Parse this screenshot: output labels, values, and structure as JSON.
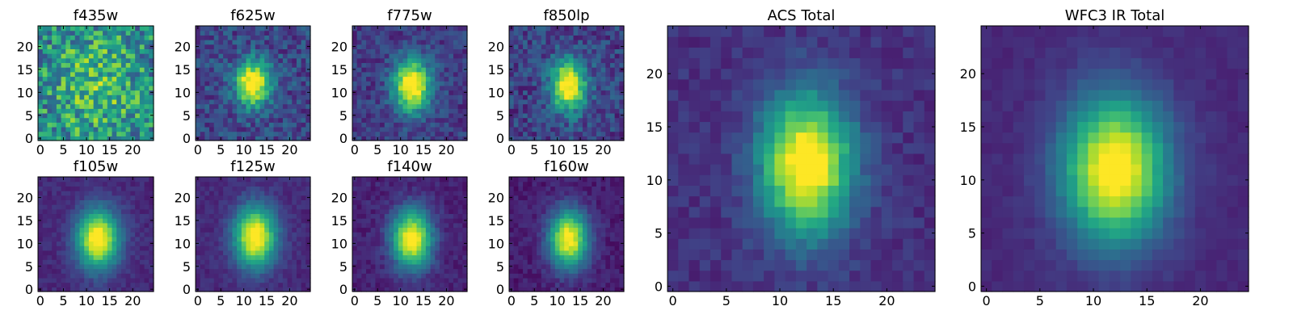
{
  "chart_data": [
    {
      "type": "heatmap",
      "title": "f435w",
      "center": [
        12,
        12
      ],
      "sigma": [
        7,
        9
      ],
      "amplitude": 0.25,
      "noise": 0.55,
      "base": 0.45,
      "seed": 11,
      "xticks": [
        0,
        5,
        10,
        15,
        20
      ],
      "yticks": [
        0,
        5,
        10,
        15,
        20
      ],
      "xlim": [
        0,
        24
      ],
      "ylim": [
        0,
        24
      ]
    },
    {
      "type": "heatmap",
      "title": "f625w",
      "center": [
        12,
        12
      ],
      "sigma": [
        2.6,
        3.4
      ],
      "amplitude": 0.9,
      "noise": 0.28,
      "base": 0.22,
      "seed": 23,
      "xticks": [
        0,
        5,
        10,
        15,
        20
      ],
      "yticks": [
        0,
        5,
        10,
        15,
        20
      ],
      "xlim": [
        0,
        24
      ],
      "ylim": [
        0,
        24
      ]
    },
    {
      "type": "heatmap",
      "title": "f775w",
      "center": [
        12.5,
        11.5
      ],
      "sigma": [
        2.8,
        4.0
      ],
      "amplitude": 0.92,
      "noise": 0.22,
      "base": 0.18,
      "seed": 37,
      "xticks": [
        0,
        5,
        10,
        15,
        20
      ],
      "yticks": [
        0,
        5,
        10,
        15,
        20
      ],
      "xlim": [
        0,
        24
      ],
      "ylim": [
        0,
        24
      ]
    },
    {
      "type": "heatmap",
      "title": "f850lp",
      "center": [
        12.5,
        11.5
      ],
      "sigma": [
        2.6,
        3.8
      ],
      "amplitude": 0.9,
      "noise": 0.28,
      "base": 0.2,
      "seed": 41,
      "xticks": [
        0,
        5,
        10,
        15,
        20
      ],
      "yticks": [
        0,
        5,
        10,
        15,
        20
      ],
      "xlim": [
        0,
        24
      ],
      "ylim": [
        0,
        24
      ]
    },
    {
      "type": "heatmap",
      "title": "f105w",
      "center": [
        12.5,
        11
      ],
      "sigma": [
        3.2,
        4.5
      ],
      "amplitude": 0.95,
      "noise": 0.1,
      "base": 0.12,
      "seed": 53,
      "xticks": [
        0,
        5,
        10,
        15,
        20
      ],
      "yticks": [
        0,
        5,
        10,
        15,
        20
      ],
      "xlim": [
        0,
        24
      ],
      "ylim": [
        0,
        24
      ]
    },
    {
      "type": "heatmap",
      "title": "f125w",
      "center": [
        12.5,
        11.5
      ],
      "sigma": [
        3.2,
        4.6
      ],
      "amplitude": 0.95,
      "noise": 0.1,
      "base": 0.12,
      "seed": 61,
      "xticks": [
        0,
        5,
        10,
        15,
        20
      ],
      "yticks": [
        0,
        5,
        10,
        15,
        20
      ],
      "xlim": [
        0,
        24
      ],
      "ylim": [
        0,
        24
      ]
    },
    {
      "type": "heatmap",
      "title": "f140w",
      "center": [
        12.5,
        11
      ],
      "sigma": [
        3.0,
        4.4
      ],
      "amplitude": 0.95,
      "noise": 0.12,
      "base": 0.1,
      "seed": 71,
      "xticks": [
        0,
        5,
        10,
        15,
        20
      ],
      "yticks": [
        0,
        5,
        10,
        15,
        20
      ],
      "xlim": [
        0,
        24
      ],
      "ylim": [
        0,
        24
      ]
    },
    {
      "type": "heatmap",
      "title": "f160w",
      "center": [
        12.5,
        11
      ],
      "sigma": [
        3.0,
        4.4
      ],
      "amplitude": 0.95,
      "noise": 0.12,
      "base": 0.08,
      "seed": 83,
      "xticks": [
        0,
        5,
        10,
        15,
        20
      ],
      "yticks": [
        0,
        5,
        10,
        15,
        20
      ],
      "xlim": [
        0,
        24
      ],
      "ylim": [
        0,
        24
      ]
    },
    {
      "type": "heatmap",
      "title": "ACS Total",
      "center": [
        12.5,
        11.5
      ],
      "sigma": [
        3.0,
        4.6
      ],
      "amplitude": 0.95,
      "noise": 0.12,
      "base": 0.14,
      "seed": 97,
      "xticks": [
        0,
        5,
        10,
        15,
        20
      ],
      "yticks": [
        0,
        5,
        10,
        15,
        20
      ],
      "xlim": [
        0,
        24
      ],
      "ylim": [
        0,
        24
      ]
    },
    {
      "type": "heatmap",
      "title": "WFC3 IR Total",
      "center": [
        12,
        11
      ],
      "sigma": [
        3.4,
        4.8
      ],
      "amplitude": 0.95,
      "noise": 0.06,
      "base": 0.12,
      "seed": 101,
      "xticks": [
        0,
        5,
        10,
        15,
        20
      ],
      "yticks": [
        0,
        5,
        10,
        15,
        20
      ],
      "xlim": [
        0,
        24
      ],
      "ylim": [
        0,
        24
      ]
    }
  ]
}
